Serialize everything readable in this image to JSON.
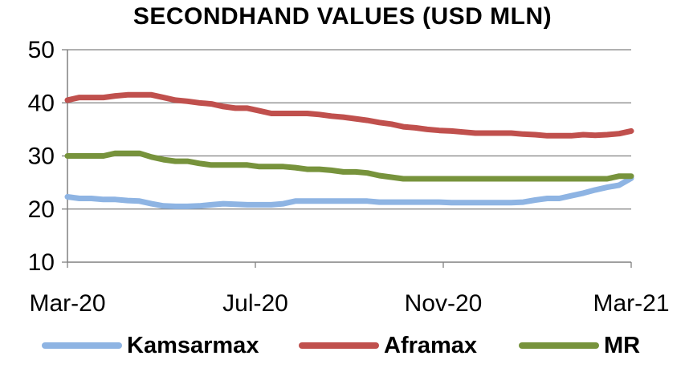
{
  "chart_data": {
    "type": "line",
    "title": "SECONDHAND VALUES (USD MLN)",
    "xlabel": "",
    "ylabel": "",
    "ylim": [
      10,
      50
    ],
    "yticks": [
      "10",
      "20",
      "30",
      "40",
      "50"
    ],
    "x_tick_labels": [
      "Mar-20",
      "Jul-20",
      "Nov-20",
      "Mar-21"
    ],
    "grid": "horizontal",
    "legend_position": "bottom",
    "x": [
      "Mar-20",
      "Mar-20",
      "Mar-20",
      "Apr-20",
      "Apr-20",
      "Apr-20",
      "Apr-20",
      "May-20",
      "May-20",
      "May-20",
      "May-20",
      "Jun-20",
      "Jun-20",
      "Jun-20",
      "Jun-20",
      "Jul-20",
      "Jul-20",
      "Jul-20",
      "Jul-20",
      "Aug-20",
      "Aug-20",
      "Aug-20",
      "Aug-20",
      "Sep-20",
      "Sep-20",
      "Sep-20",
      "Sep-20",
      "Oct-20",
      "Oct-20",
      "Oct-20",
      "Oct-20",
      "Nov-20",
      "Nov-20",
      "Nov-20",
      "Nov-20",
      "Dec-20",
      "Dec-20",
      "Dec-20",
      "Dec-20",
      "Jan-21",
      "Jan-21",
      "Jan-21",
      "Jan-21",
      "Feb-21",
      "Feb-21",
      "Feb-21",
      "Feb-21",
      "Mar-21"
    ],
    "series": [
      {
        "name": "Kamsarmax",
        "color": "#8EB4E3",
        "values": [
          22.3,
          22.0,
          22.0,
          21.8,
          21.8,
          21.6,
          21.5,
          21.0,
          20.6,
          20.5,
          20.5,
          20.6,
          20.8,
          21.0,
          20.9,
          20.8,
          20.8,
          20.8,
          21.0,
          21.5,
          21.5,
          21.5,
          21.5,
          21.5,
          21.5,
          21.5,
          21.3,
          21.3,
          21.3,
          21.3,
          21.3,
          21.3,
          21.2,
          21.2,
          21.2,
          21.2,
          21.2,
          21.2,
          21.3,
          21.7,
          22.0,
          22.0,
          22.5,
          23.0,
          23.6,
          24.1,
          24.5,
          25.8
        ]
      },
      {
        "name": "Aframax",
        "color": "#C0504D",
        "values": [
          40.5,
          41.0,
          41.0,
          41.0,
          41.3,
          41.5,
          41.5,
          41.5,
          41.0,
          40.5,
          40.3,
          40.0,
          39.8,
          39.3,
          39.0,
          39.0,
          38.5,
          38.0,
          38.0,
          38.0,
          38.0,
          37.8,
          37.5,
          37.3,
          37.0,
          36.7,
          36.3,
          36.0,
          35.5,
          35.3,
          35.0,
          34.8,
          34.7,
          34.5,
          34.3,
          34.3,
          34.3,
          34.3,
          34.1,
          34.0,
          33.8,
          33.8,
          33.8,
          34.0,
          33.9,
          34.0,
          34.2,
          34.7
        ]
      },
      {
        "name": "MR",
        "color": "#77933C",
        "values": [
          30.0,
          30.0,
          30.0,
          30.0,
          30.5,
          30.5,
          30.5,
          29.8,
          29.3,
          29.0,
          29.0,
          28.6,
          28.3,
          28.3,
          28.3,
          28.3,
          28.0,
          28.0,
          28.0,
          27.8,
          27.5,
          27.5,
          27.3,
          27.0,
          27.0,
          26.8,
          26.3,
          26.0,
          25.7,
          25.7,
          25.7,
          25.7,
          25.7,
          25.7,
          25.7,
          25.7,
          25.7,
          25.7,
          25.7,
          25.7,
          25.7,
          25.7,
          25.7,
          25.7,
          25.7,
          25.7,
          26.2,
          26.2
        ]
      }
    ]
  }
}
